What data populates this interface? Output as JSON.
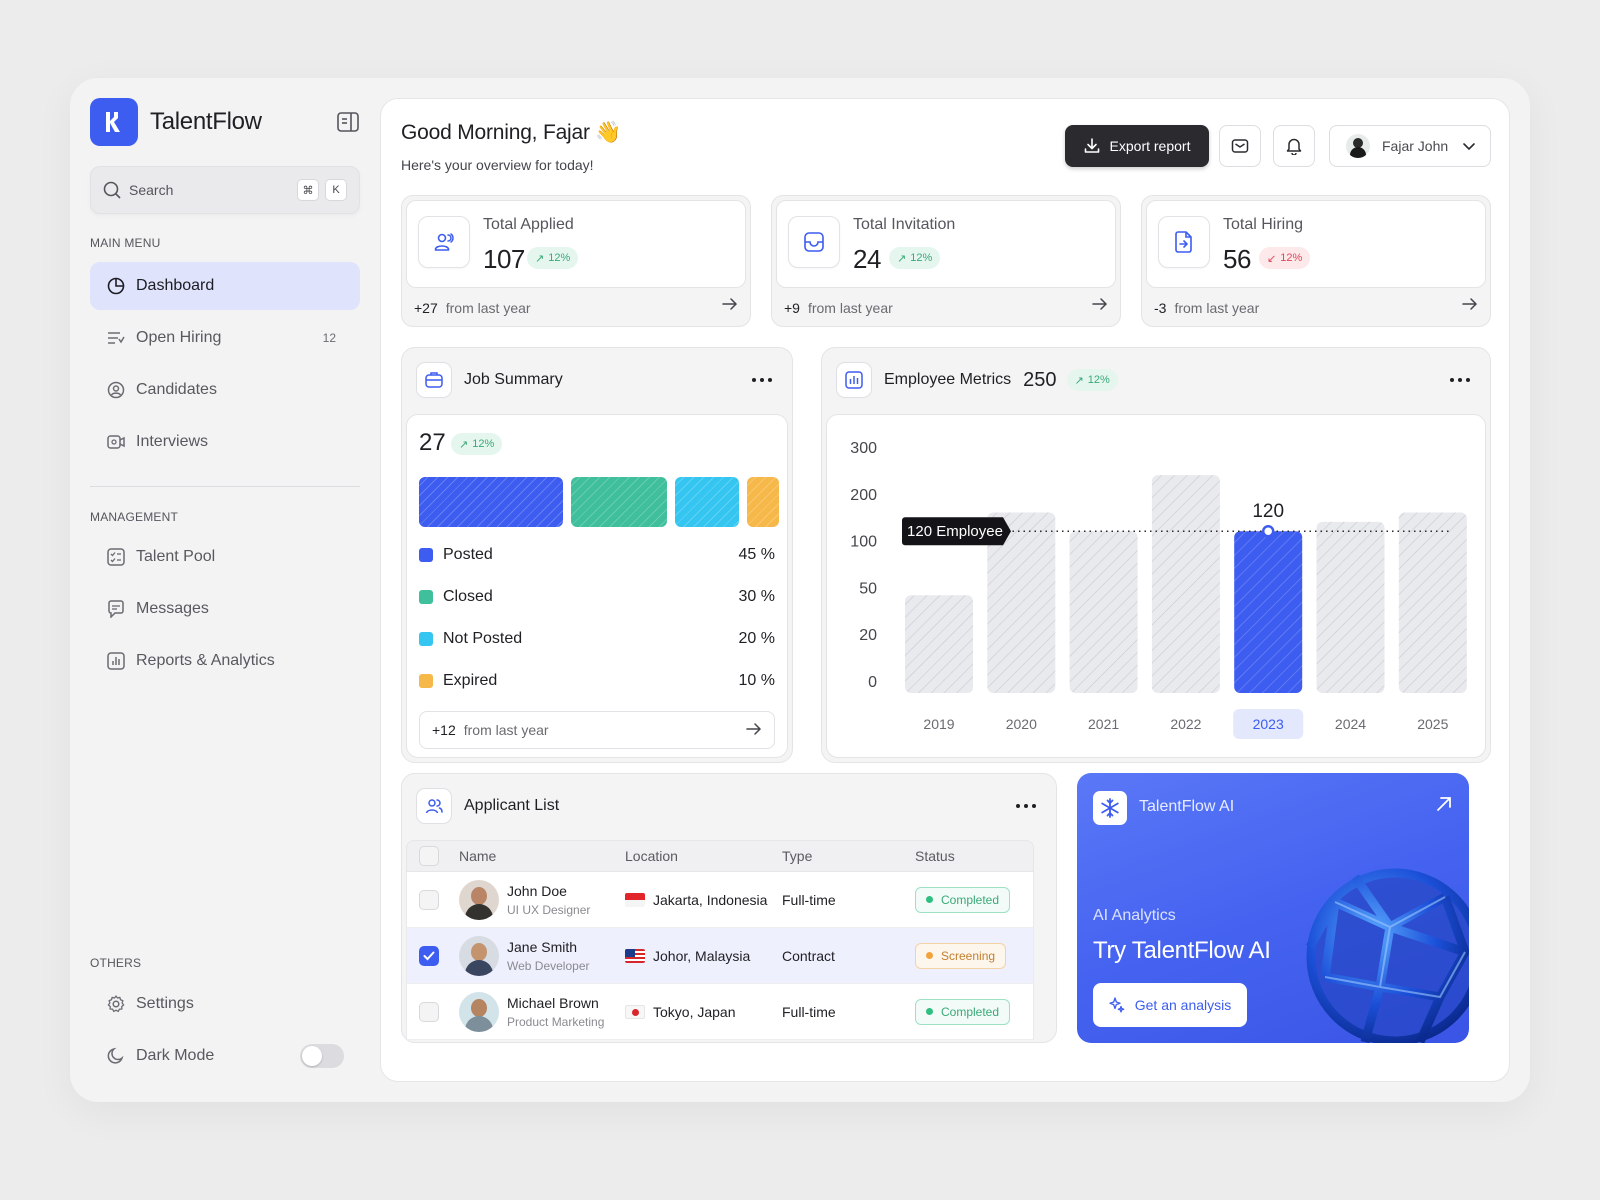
{
  "brand": {
    "name": "TalentFlow"
  },
  "search": {
    "placeholder": "Search",
    "kbd1": "⌘",
    "kbd2": "K"
  },
  "sidebar": {
    "main_title": "MAIN MENU",
    "main_items": [
      {
        "label": "Dashboard",
        "icon": "pie-chart-icon",
        "active": true
      },
      {
        "label": "Open Hiring",
        "icon": "list-filter-icon",
        "count": "12"
      },
      {
        "label": "Candidates",
        "icon": "user-circle-icon"
      },
      {
        "label": "Interviews",
        "icon": "video-icon"
      }
    ],
    "management_title": "MANAGEMENT",
    "management_items": [
      {
        "label": "Talent Pool",
        "icon": "checklist-icon"
      },
      {
        "label": "Messages",
        "icon": "message-icon"
      },
      {
        "label": "Reports & Analytics",
        "icon": "bar-chart-icon"
      }
    ],
    "others_title": "OTHERS",
    "others_items": [
      {
        "label": "Settings",
        "icon": "gear-icon"
      },
      {
        "label": "Dark Mode",
        "icon": "moon-icon",
        "toggle": false
      }
    ]
  },
  "header": {
    "greeting": "Good Morning, Fajar 👋",
    "subtitle": "Here's your overview for today!",
    "export_label": "Export report",
    "user_name": "Fajar John"
  },
  "stats": [
    {
      "label": "Total Applied",
      "value": "107",
      "change": "12%",
      "trend": "up",
      "delta": "+27",
      "delta_text": "from last year",
      "icon": "users-icon"
    },
    {
      "label": "Total Invitation",
      "value": "24",
      "change": "12%",
      "trend": "up",
      "delta": "+9",
      "delta_text": "from last year",
      "icon": "inbox-icon"
    },
    {
      "label": "Total Hiring",
      "value": "56",
      "change": "12%",
      "trend": "down",
      "delta": "-3",
      "delta_text": "from last year",
      "icon": "file-import-icon"
    }
  ],
  "job_summary": {
    "title": "Job Summary",
    "total": "27",
    "change": "12%",
    "items": [
      {
        "label": "Posted",
        "value": "45 %",
        "percent": 45,
        "color": "#3d5cf0"
      },
      {
        "label": "Closed",
        "value": "30 %",
        "percent": 30,
        "color": "#3fbf9b"
      },
      {
        "label": "Not Posted",
        "value": "20 %",
        "percent": 20,
        "color": "#34c5f0"
      },
      {
        "label": "Expired",
        "value": "10 %",
        "percent": 10,
        "color": "#f6b849"
      }
    ],
    "delta": "+12",
    "delta_text": "from last year"
  },
  "employee_metrics": {
    "title": "Employee Metrics",
    "total": "250",
    "change": "12%",
    "tooltip": "120 Employee",
    "highlight_label": "120"
  },
  "chart_data": {
    "type": "bar",
    "categories": [
      "2019",
      "2020",
      "2021",
      "2022",
      "2023",
      "2024",
      "2025"
    ],
    "values": [
      45,
      160,
      120,
      240,
      120,
      140,
      160
    ],
    "highlight_index": 4,
    "y_ticks": [
      "0",
      "20",
      "50",
      "100",
      "200",
      "300"
    ],
    "reference_value": 120,
    "colors": {
      "bar": "#e6e7ec",
      "highlight": "#3d5cf0"
    }
  },
  "applicants": {
    "title": "Applicant List",
    "columns": [
      "Name",
      "Location",
      "Type",
      "Status"
    ],
    "rows": [
      {
        "name": "John Doe",
        "role": "UI UX Designer",
        "location": "Jakarta, Indonesia",
        "flag": "indonesia",
        "type": "Full-time",
        "status": "Completed",
        "checked": false
      },
      {
        "name": "Jane Smith",
        "role": "Web Developer",
        "location": "Johor, Malaysia",
        "flag": "malaysia",
        "type": "Contract",
        "status": "Screening",
        "checked": true
      },
      {
        "name": "Michael Brown",
        "role": "Product Marketing",
        "location": "Tokyo, Japan",
        "flag": "japan",
        "type": "Full-time",
        "status": "Completed",
        "checked": false
      }
    ]
  },
  "ai": {
    "name": "TalentFlow AI",
    "subtitle": "AI Analytics",
    "title": "Try TalentFlow AI",
    "button": "Get an analysis"
  }
}
